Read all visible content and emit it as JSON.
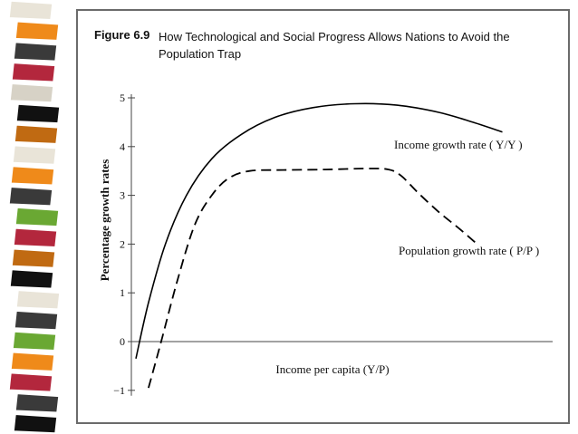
{
  "figure": {
    "label": "Figure 6.9",
    "title": "How Technological and Social Progress Allows Nations to Avoid the Population Trap"
  },
  "colors": {
    "strip": [
      "#e9e4d8",
      "#ef8a1a",
      "#3a3a3a",
      "#b3273d",
      "#d7d2c6",
      "#111111",
      "#c06a12",
      "#e9e4d8",
      "#ef8a1a",
      "#3a3a3a",
      "#6aa833",
      "#b3273d",
      "#c06a12",
      "#111111",
      "#e9e4d8",
      "#3a3a3a",
      "#6aa833",
      "#ef8a1a",
      "#b3273d",
      "#3a3a3a",
      "#111111"
    ],
    "frame": "#6b6b6b",
    "curve": "#000000"
  },
  "chart_data": {
    "type": "line",
    "xlabel": "Income per capita (Y/P)",
    "ylabel": "Percentage growth rates",
    "ylim": [
      -1,
      5
    ],
    "yticks": [
      -1,
      0,
      1,
      2,
      3,
      4,
      5
    ],
    "x_numeric_ticks": false,
    "series": [
      {
        "name": "Income growth rate ( Y/Y )",
        "style": "solid",
        "x": [
          0.0,
          0.03,
          0.07,
          0.12,
          0.18,
          0.25,
          0.33,
          0.42,
          0.52,
          0.62,
          0.72,
          0.8,
          0.87
        ],
        "y": [
          -0.35,
          0.8,
          2.0,
          3.0,
          3.75,
          4.25,
          4.6,
          4.8,
          4.88,
          4.85,
          4.7,
          4.5,
          4.3
        ]
      },
      {
        "name": "Population growth rate ( P/P )",
        "style": "dashed",
        "x": [
          0.03,
          0.06,
          0.1,
          0.14,
          0.18,
          0.22,
          0.27,
          0.35,
          0.45,
          0.55,
          0.6,
          0.63,
          0.67,
          0.72,
          0.77,
          0.81
        ],
        "y": [
          -0.95,
          0.0,
          1.3,
          2.4,
          3.0,
          3.35,
          3.5,
          3.52,
          3.53,
          3.55,
          3.53,
          3.4,
          3.05,
          2.65,
          2.3,
          2.0
        ]
      }
    ]
  }
}
